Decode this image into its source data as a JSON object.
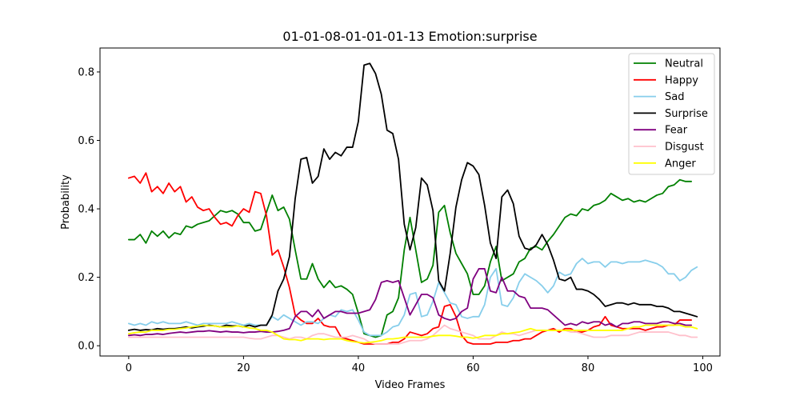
{
  "chart_data": {
    "type": "line",
    "title": "01-01-08-01-01-01-13 Emotion:surprise",
    "xlabel": "Video Frames",
    "ylabel": "Probability",
    "xlim": [
      -5,
      103
    ],
    "ylim": [
      -0.03,
      0.87
    ],
    "xticks": [
      0,
      20,
      40,
      60,
      80,
      100
    ],
    "yticks": [
      0.0,
      0.2,
      0.4,
      0.6,
      0.8
    ],
    "grid": false,
    "legend_position": "top-right",
    "x_start": 0,
    "x_step": 1,
    "series": [
      {
        "name": "Neutral",
        "color": "#008000",
        "values": [
          0.31,
          0.31,
          0.325,
          0.3,
          0.335,
          0.32,
          0.335,
          0.315,
          0.33,
          0.325,
          0.35,
          0.345,
          0.355,
          0.36,
          0.365,
          0.38,
          0.395,
          0.39,
          0.395,
          0.385,
          0.36,
          0.36,
          0.335,
          0.34,
          0.39,
          0.44,
          0.395,
          0.405,
          0.37,
          0.28,
          0.195,
          0.195,
          0.24,
          0.195,
          0.17,
          0.19,
          0.17,
          0.175,
          0.165,
          0.15,
          0.095,
          0.035,
          0.03,
          0.025,
          0.03,
          0.09,
          0.1,
          0.14,
          0.28,
          0.375,
          0.28,
          0.185,
          0.195,
          0.235,
          0.39,
          0.41,
          0.33,
          0.27,
          0.24,
          0.21,
          0.15,
          0.15,
          0.175,
          0.245,
          0.29,
          0.19,
          0.2,
          0.21,
          0.245,
          0.255,
          0.285,
          0.29,
          0.28,
          0.305,
          0.325,
          0.35,
          0.375,
          0.385,
          0.38,
          0.4,
          0.395,
          0.41,
          0.415,
          0.425,
          0.445,
          0.435,
          0.425,
          0.43,
          0.42,
          0.425,
          0.42,
          0.43,
          0.44,
          0.445,
          0.465,
          0.47,
          0.485,
          0.48,
          0.48
        ]
      },
      {
        "name": "Happy",
        "color": "#ff0000",
        "values": [
          0.49,
          0.495,
          0.475,
          0.505,
          0.45,
          0.465,
          0.445,
          0.475,
          0.45,
          0.465,
          0.42,
          0.435,
          0.405,
          0.395,
          0.4,
          0.375,
          0.355,
          0.36,
          0.35,
          0.38,
          0.4,
          0.39,
          0.45,
          0.445,
          0.38,
          0.265,
          0.28,
          0.23,
          0.17,
          0.09,
          0.075,
          0.065,
          0.065,
          0.08,
          0.06,
          0.055,
          0.055,
          0.025,
          0.02,
          0.015,
          0.01,
          0.005,
          0.005,
          0.005,
          0.005,
          0.005,
          0.01,
          0.01,
          0.02,
          0.04,
          0.035,
          0.03,
          0.035,
          0.05,
          0.055,
          0.115,
          0.12,
          0.085,
          0.03,
          0.01,
          0.005,
          0.005,
          0.005,
          0.005,
          0.01,
          0.01,
          0.01,
          0.015,
          0.015,
          0.02,
          0.02,
          0.03,
          0.04,
          0.045,
          0.05,
          0.04,
          0.05,
          0.05,
          0.04,
          0.04,
          0.045,
          0.055,
          0.06,
          0.085,
          0.06,
          0.055,
          0.05,
          0.05,
          0.05,
          0.05,
          0.045,
          0.05,
          0.055,
          0.055,
          0.06,
          0.06,
          0.075,
          0.075,
          0.075
        ]
      },
      {
        "name": "Sad",
        "color": "#87ceeb",
        "values": [
          0.065,
          0.06,
          0.065,
          0.06,
          0.07,
          0.065,
          0.07,
          0.065,
          0.065,
          0.065,
          0.07,
          0.065,
          0.06,
          0.065,
          0.065,
          0.065,
          0.065,
          0.065,
          0.07,
          0.065,
          0.06,
          0.065,
          0.06,
          0.06,
          0.06,
          0.085,
          0.075,
          0.09,
          0.08,
          0.07,
          0.06,
          0.07,
          0.07,
          0.065,
          0.08,
          0.09,
          0.085,
          0.105,
          0.1,
          0.105,
          0.075,
          0.04,
          0.03,
          0.03,
          0.03,
          0.04,
          0.055,
          0.06,
          0.09,
          0.15,
          0.155,
          0.085,
          0.09,
          0.13,
          0.185,
          0.155,
          0.125,
          0.12,
          0.085,
          0.08,
          0.085,
          0.085,
          0.12,
          0.2,
          0.225,
          0.12,
          0.115,
          0.14,
          0.185,
          0.21,
          0.2,
          0.19,
          0.175,
          0.155,
          0.175,
          0.215,
          0.205,
          0.21,
          0.24,
          0.255,
          0.24,
          0.245,
          0.245,
          0.23,
          0.245,
          0.245,
          0.24,
          0.245,
          0.245,
          0.245,
          0.25,
          0.245,
          0.24,
          0.23,
          0.21,
          0.21,
          0.19,
          0.2,
          0.22,
          0.23
        ]
      },
      {
        "name": "Surprise",
        "color": "#000000",
        "values": [
          0.045,
          0.048,
          0.045,
          0.047,
          0.046,
          0.05,
          0.048,
          0.05,
          0.05,
          0.052,
          0.055,
          0.052,
          0.055,
          0.057,
          0.06,
          0.058,
          0.055,
          0.06,
          0.058,
          0.058,
          0.055,
          0.06,
          0.055,
          0.06,
          0.06,
          0.09,
          0.16,
          0.195,
          0.26,
          0.43,
          0.545,
          0.55,
          0.475,
          0.495,
          0.575,
          0.545,
          0.565,
          0.555,
          0.58,
          0.58,
          0.655,
          0.82,
          0.825,
          0.795,
          0.735,
          0.63,
          0.62,
          0.545,
          0.355,
          0.28,
          0.345,
          0.49,
          0.47,
          0.395,
          0.19,
          0.16,
          0.27,
          0.405,
          0.485,
          0.535,
          0.525,
          0.5,
          0.41,
          0.3,
          0.255,
          0.435,
          0.455,
          0.415,
          0.32,
          0.285,
          0.28,
          0.295,
          0.325,
          0.295,
          0.25,
          0.195,
          0.19,
          0.2,
          0.165,
          0.165,
          0.16,
          0.15,
          0.135,
          0.115,
          0.12,
          0.125,
          0.125,
          0.12,
          0.125,
          0.12,
          0.12,
          0.12,
          0.115,
          0.115,
          0.11,
          0.1,
          0.1,
          0.095,
          0.09,
          0.085
        ]
      },
      {
        "name": "Fear",
        "color": "#800080",
        "values": [
          0.03,
          0.032,
          0.03,
          0.033,
          0.033,
          0.035,
          0.033,
          0.036,
          0.038,
          0.04,
          0.038,
          0.04,
          0.042,
          0.042,
          0.044,
          0.042,
          0.04,
          0.042,
          0.04,
          0.04,
          0.038,
          0.04,
          0.04,
          0.042,
          0.04,
          0.04,
          0.042,
          0.045,
          0.05,
          0.085,
          0.1,
          0.1,
          0.085,
          0.105,
          0.08,
          0.09,
          0.1,
          0.1,
          0.095,
          0.095,
          0.095,
          0.1,
          0.105,
          0.135,
          0.185,
          0.19,
          0.185,
          0.19,
          0.14,
          0.09,
          0.12,
          0.15,
          0.15,
          0.14,
          0.09,
          0.08,
          0.075,
          0.08,
          0.1,
          0.11,
          0.195,
          0.225,
          0.225,
          0.16,
          0.155,
          0.2,
          0.16,
          0.16,
          0.145,
          0.14,
          0.11,
          0.11,
          0.11,
          0.105,
          0.09,
          0.075,
          0.06,
          0.065,
          0.06,
          0.07,
          0.065,
          0.07,
          0.07,
          0.06,
          0.065,
          0.055,
          0.065,
          0.065,
          0.07,
          0.07,
          0.065,
          0.065,
          0.065,
          0.07,
          0.07,
          0.065,
          0.065,
          0.06,
          0.06
        ]
      },
      {
        "name": "Disgust",
        "color": "#ffc0cb",
        "values": [
          0.025,
          0.025,
          0.025,
          0.025,
          0.025,
          0.025,
          0.025,
          0.025,
          0.025,
          0.025,
          0.025,
          0.025,
          0.025,
          0.025,
          0.025,
          0.025,
          0.025,
          0.025,
          0.025,
          0.025,
          0.025,
          0.022,
          0.02,
          0.02,
          0.025,
          0.03,
          0.03,
          0.025,
          0.02,
          0.025,
          0.025,
          0.02,
          0.03,
          0.035,
          0.035,
          0.03,
          0.025,
          0.025,
          0.025,
          0.03,
          0.025,
          0.02,
          0.01,
          0.005,
          0.005,
          0.005,
          0.005,
          0.005,
          0.01,
          0.015,
          0.015,
          0.015,
          0.02,
          0.03,
          0.045,
          0.06,
          0.05,
          0.045,
          0.04,
          0.035,
          0.03,
          0.02,
          0.02,
          0.02,
          0.03,
          0.04,
          0.035,
          0.035,
          0.03,
          0.035,
          0.04,
          0.045,
          0.045,
          0.045,
          0.045,
          0.045,
          0.045,
          0.04,
          0.04,
          0.035,
          0.03,
          0.025,
          0.025,
          0.025,
          0.03,
          0.03,
          0.03,
          0.03,
          0.035,
          0.04,
          0.04,
          0.04,
          0.04,
          0.04,
          0.04,
          0.035,
          0.03,
          0.03,
          0.025,
          0.025
        ]
      },
      {
        "name": "Anger",
        "color": "#ffff00",
        "values": [
          0.035,
          0.038,
          0.04,
          0.04,
          0.045,
          0.045,
          0.045,
          0.048,
          0.048,
          0.05,
          0.052,
          0.055,
          0.057,
          0.06,
          0.058,
          0.058,
          0.055,
          0.055,
          0.055,
          0.058,
          0.055,
          0.052,
          0.05,
          0.045,
          0.045,
          0.04,
          0.03,
          0.02,
          0.018,
          0.018,
          0.015,
          0.02,
          0.02,
          0.02,
          0.018,
          0.02,
          0.02,
          0.02,
          0.015,
          0.012,
          0.01,
          0.008,
          0.01,
          0.012,
          0.015,
          0.02,
          0.02,
          0.022,
          0.025,
          0.025,
          0.025,
          0.025,
          0.025,
          0.028,
          0.03,
          0.03,
          0.03,
          0.028,
          0.025,
          0.025,
          0.022,
          0.025,
          0.03,
          0.03,
          0.03,
          0.035,
          0.035,
          0.038,
          0.04,
          0.045,
          0.05,
          0.045,
          0.045,
          0.045,
          0.045,
          0.045,
          0.045,
          0.045,
          0.045,
          0.045,
          0.045,
          0.045,
          0.045,
          0.045,
          0.045,
          0.045,
          0.045,
          0.05,
          0.055,
          0.055,
          0.06,
          0.06,
          0.06,
          0.06,
          0.06,
          0.06,
          0.06,
          0.055,
          0.055,
          0.05
        ]
      }
    ]
  }
}
